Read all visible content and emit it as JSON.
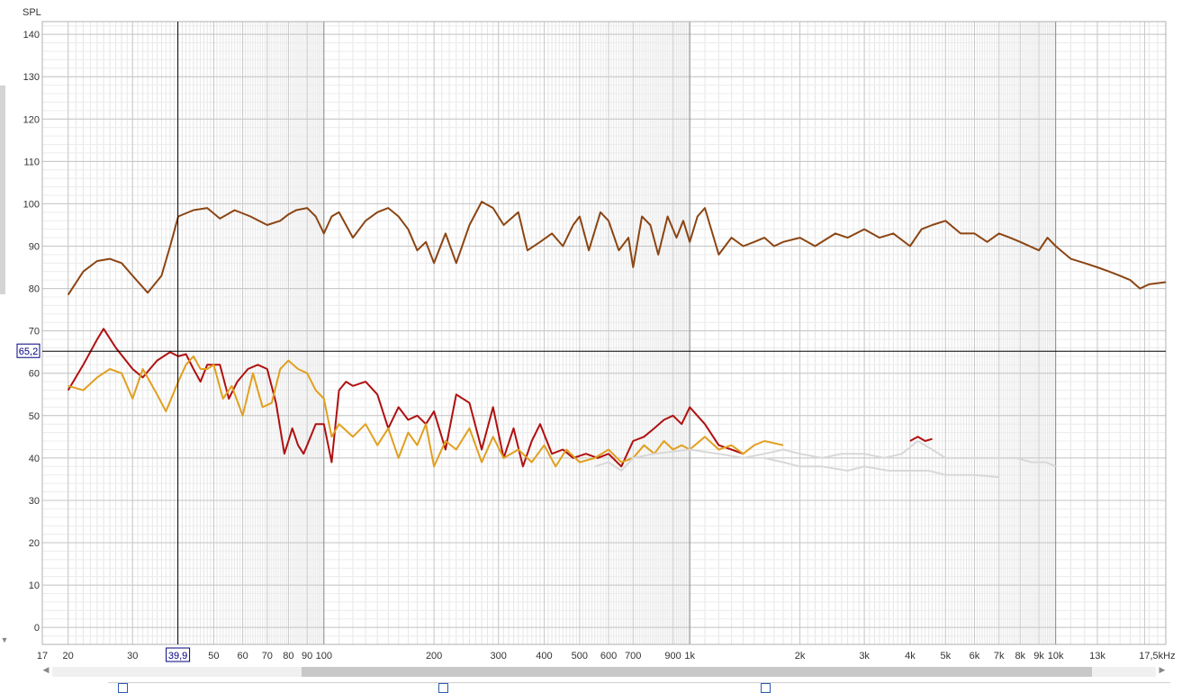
{
  "chart_data": {
    "type": "line",
    "ylabel": "SPL",
    "xscale": "log",
    "xlim": [
      17,
      20000
    ],
    "ylim": [
      -4,
      143
    ],
    "x_ticks": [
      "17",
      "20",
      "30",
      "50",
      "60",
      "70",
      "80",
      "90",
      "100",
      "200",
      "300",
      "400",
      "500",
      "600",
      "700",
      "900",
      "1k",
      "2k",
      "3k",
      "4k",
      "5k",
      "6k",
      "7k",
      "8k",
      "9k",
      "10k",
      "13k",
      "17,5kHz"
    ],
    "y_ticks": [
      "0",
      "10",
      "20",
      "30",
      "40",
      "50",
      "60",
      "70",
      "80",
      "90",
      "100",
      "110",
      "120",
      "130",
      "140"
    ],
    "cursor": {
      "x_value": 39.9,
      "x_label": "39,9",
      "y_value": 65.2,
      "y_label": "65,2"
    },
    "grid": true,
    "series": [
      {
        "color": "#8b4513",
        "x": [
          20,
          22,
          24,
          26,
          28,
          30,
          33,
          36,
          38,
          40,
          44,
          48,
          52,
          57,
          63,
          70,
          76,
          80,
          84,
          90,
          95,
          100,
          105,
          110,
          120,
          130,
          140,
          150,
          160,
          170,
          180,
          190,
          200,
          215,
          230,
          250,
          270,
          290,
          310,
          340,
          360,
          390,
          420,
          450,
          480,
          500,
          530,
          570,
          600,
          640,
          680,
          700,
          740,
          780,
          820,
          870,
          920,
          960,
          1000,
          1050,
          1100,
          1200,
          1300,
          1400,
          1500,
          1600,
          1700,
          1800,
          2000,
          2200,
          2500,
          2700,
          3000,
          3300,
          3600,
          4000,
          4300,
          4600,
          5000,
          5500,
          6000,
          6500,
          7000,
          7500,
          8000,
          9000,
          9500,
          10000,
          11000,
          12000,
          13000,
          14000,
          15000,
          16000,
          17000,
          18000,
          20000
        ],
        "y": [
          78.5,
          84,
          86.5,
          87,
          86,
          83,
          79,
          83,
          90,
          97,
          98.5,
          99,
          96.5,
          98.5,
          97,
          95,
          96,
          97.5,
          98.5,
          99,
          97,
          93,
          97,
          98,
          92,
          96,
          98,
          99,
          97,
          94,
          89,
          91,
          86,
          93,
          86,
          95,
          100.5,
          99,
          95,
          98,
          89,
          91,
          93,
          90,
          95,
          97,
          89,
          98,
          96,
          89,
          92,
          85,
          97,
          95,
          88,
          97,
          92,
          96,
          91,
          97,
          99,
          88,
          92,
          90,
          91,
          92,
          90,
          91,
          92,
          90,
          93,
          92,
          94,
          92,
          93,
          90,
          94,
          95,
          96,
          93,
          93,
          91,
          93,
          92,
          91,
          89,
          92,
          90,
          87,
          86,
          85,
          84,
          83,
          82,
          80,
          81,
          81.5
        ]
      },
      {
        "color": "#b01010",
        "x": [
          20,
          22,
          24,
          25,
          27,
          30,
          32,
          35,
          38,
          40,
          42,
          44,
          46,
          48,
          52,
          55,
          58,
          62,
          66,
          70,
          74,
          78,
          80,
          82,
          85,
          88,
          90,
          95,
          100,
          105,
          110,
          115,
          120,
          130,
          140,
          150,
          160,
          170,
          180,
          190,
          200,
          215,
          230,
          250,
          270,
          290,
          310,
          330,
          350,
          370,
          390,
          420,
          450,
          480,
          520,
          560,
          600,
          650,
          700,
          750,
          800,
          850,
          900,
          950,
          1000,
          1100,
          1200,
          1300,
          1400
        ],
        "y": [
          56,
          62,
          68,
          70.5,
          66,
          61,
          59,
          63,
          65,
          64,
          64.5,
          61,
          58,
          62,
          62,
          54,
          58,
          61,
          62,
          61,
          53,
          41,
          44,
          47,
          43,
          41,
          43,
          48,
          48,
          39,
          56,
          58,
          57,
          58,
          55,
          47,
          52,
          49,
          50,
          48,
          51,
          42,
          55,
          53,
          42,
          52,
          40,
          47,
          38,
          44,
          48,
          41,
          42,
          40,
          41,
          40,
          41,
          38,
          44,
          45,
          47,
          49,
          50,
          48,
          52,
          48,
          43,
          42,
          41
        ]
      },
      {
        "color": "#e0a020",
        "x": [
          20,
          22,
          24,
          26,
          28,
          30,
          32,
          35,
          37,
          40,
          42,
          44,
          46,
          48,
          50,
          53,
          56,
          60,
          64,
          68,
          72,
          76,
          80,
          85,
          90,
          95,
          100,
          105,
          110,
          120,
          130,
          140,
          150,
          160,
          170,
          180,
          190,
          200,
          215,
          230,
          250,
          270,
          290,
          310,
          340,
          370,
          400,
          430,
          460,
          500,
          550,
          600,
          650,
          700,
          750,
          800,
          850,
          900,
          950,
          1000,
          1100,
          1200,
          1300,
          1400,
          1500,
          1600,
          1800
        ],
        "y": [
          57,
          56,
          59,
          61,
          60,
          54,
          61,
          55,
          51,
          58,
          62,
          64,
          61,
          61,
          62,
          54,
          57,
          50,
          60,
          52,
          53,
          61,
          63,
          61,
          60,
          56,
          54,
          45,
          48,
          45,
          48,
          43,
          47,
          40,
          46,
          43,
          48,
          38,
          44,
          42,
          47,
          39,
          45,
          40,
          42,
          39,
          43,
          38,
          42,
          39,
          40,
          42,
          39,
          40,
          43,
          41,
          44,
          42,
          43,
          42,
          45,
          42,
          43,
          41,
          43,
          44,
          43
        ]
      },
      {
        "color": "#d8d8d8",
        "x": [
          550,
          600,
          650,
          700,
          800,
          1000,
          1200,
          1400,
          1600,
          1800,
          2000,
          2300,
          2600,
          3000,
          3400,
          3800,
          4200,
          4600,
          5000,
          5600,
          6200,
          7000,
          7800,
          8600,
          9400,
          10000
        ],
        "y": [
          38,
          39,
          37,
          40,
          41,
          42,
          41,
          40,
          41,
          42,
          41,
          40,
          41,
          41,
          40,
          41,
          44,
          42,
          40,
          40,
          40,
          40,
          40,
          39,
          39,
          38
        ]
      },
      {
        "color": "#d8d8d8",
        "x": [
          1600,
          1800,
          2000,
          2300,
          2700,
          3000,
          3500,
          4000,
          4500,
          5000,
          6000,
          7000
        ],
        "y": [
          40,
          39,
          38,
          38,
          37,
          38,
          37,
          37,
          37,
          36,
          36,
          35.5
        ]
      },
      {
        "color": "#b01010",
        "x": [
          4000,
          4200,
          4400,
          4600
        ],
        "y": [
          44,
          45,
          44,
          44.5
        ]
      }
    ]
  }
}
